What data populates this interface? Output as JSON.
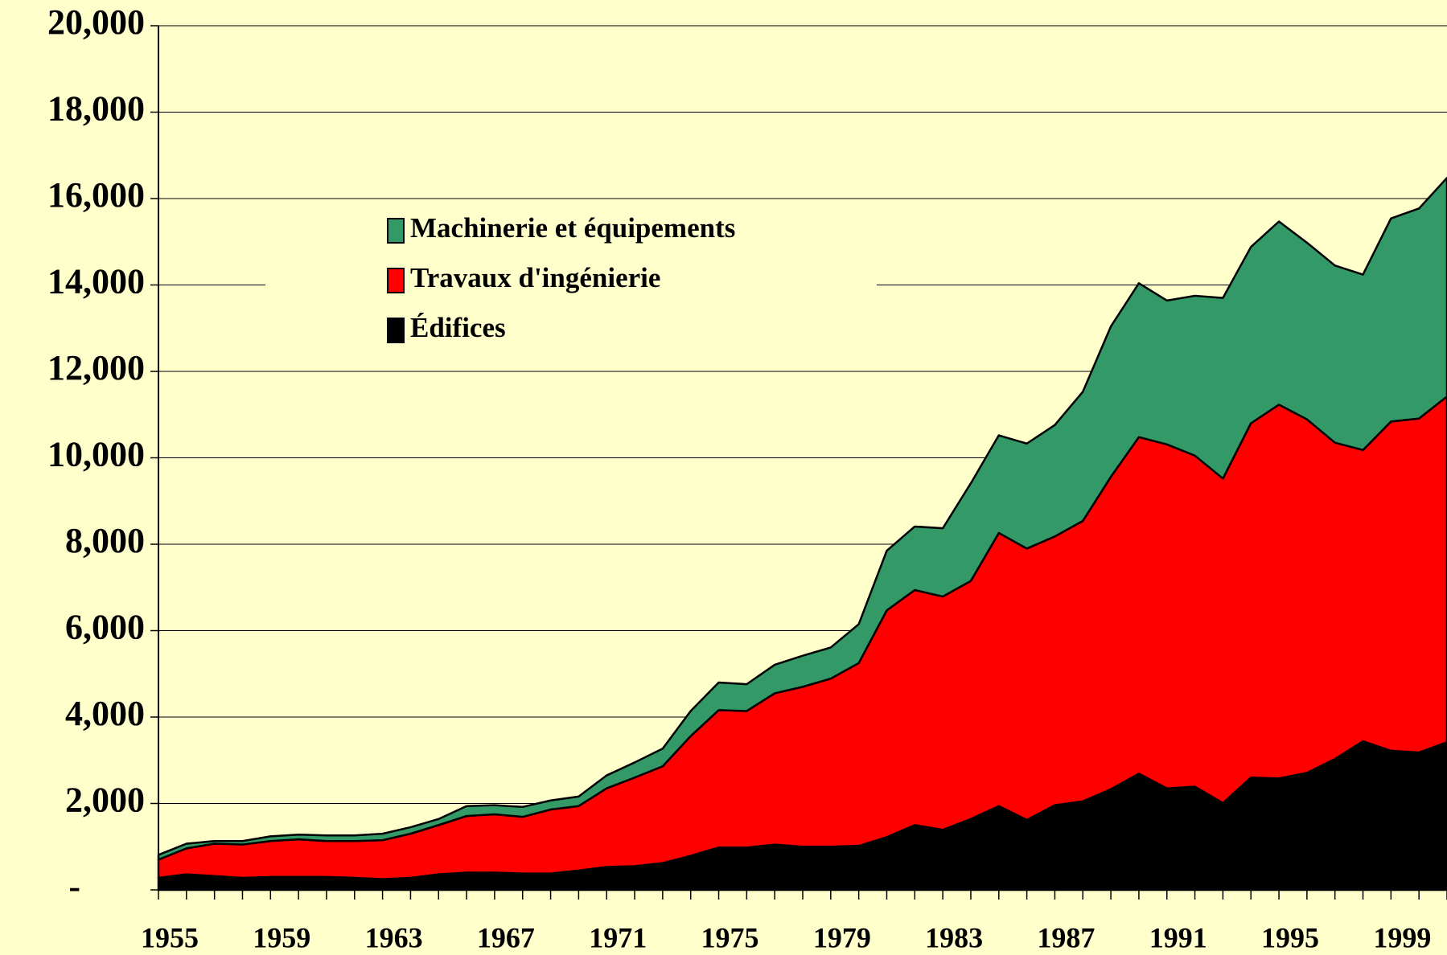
{
  "chart_data": {
    "type": "stacked_area",
    "categories": [
      "1955",
      null,
      null,
      null,
      "1959",
      null,
      null,
      null,
      "1963",
      null,
      null,
      null,
      "1967",
      null,
      null,
      null,
      "1971",
      null,
      null,
      null,
      "1975",
      null,
      null,
      null,
      "1979",
      null,
      null,
      null,
      "1983",
      null,
      null,
      null,
      "1987",
      null,
      null,
      null,
      "1991",
      null,
      null,
      null,
      "1995",
      null,
      null,
      null,
      "1999",
      null,
      null
    ],
    "series": [
      {
        "name": "Édifices",
        "color": "#000000",
        "values": [
          280,
          360,
          320,
          280,
          300,
          300,
          300,
          280,
          250,
          280,
          360,
          400,
          400,
          380,
          380,
          450,
          530,
          550,
          620,
          790,
          980,
          980,
          1050,
          1000,
          1000,
          1020,
          1220,
          1500,
          1390,
          1640,
          1940,
          1620,
          1960,
          2050,
          2330,
          2690,
          2350,
          2390,
          2010,
          2600,
          2580,
          2710,
          3030,
          3440,
          3220,
          3180,
          3420
        ]
      },
      {
        "name": "Travaux d'ingénierie",
        "color": "#ff0000",
        "values": [
          420,
          600,
          750,
          770,
          830,
          870,
          830,
          850,
          900,
          1020,
          1140,
          1310,
          1350,
          1310,
          1480,
          1490,
          1820,
          2050,
          2240,
          2770,
          3180,
          3160,
          3500,
          3700,
          3890,
          4230,
          5250,
          5440,
          5400,
          5510,
          6320,
          6280,
          6220,
          6490,
          7230,
          7790,
          7960,
          7660,
          7510,
          8200,
          8650,
          8180,
          7320,
          6740,
          7620,
          7730,
          8000
        ]
      },
      {
        "name": "Machinerie et équipements",
        "color": "#339966",
        "values": [
          110,
          110,
          60,
          80,
          110,
          110,
          130,
          130,
          150,
          150,
          140,
          230,
          210,
          230,
          210,
          220,
          300,
          350,
          410,
          580,
          640,
          620,
          660,
          720,
          720,
          900,
          1380,
          1470,
          1580,
          2260,
          2260,
          2430,
          2580,
          2990,
          3480,
          3560,
          3330,
          3700,
          4180,
          4080,
          4240,
          4090,
          4100,
          4060,
          4700,
          4860,
          5060
        ]
      }
    ],
    "ylim": [
      0,
      20000
    ],
    "yticks": [
      {
        "value": 0,
        "label": "-"
      },
      {
        "value": 2000,
        "label": "2,000"
      },
      {
        "value": 4000,
        "label": "4,000"
      },
      {
        "value": 6000,
        "label": "6,000"
      },
      {
        "value": 8000,
        "label": "8,000"
      },
      {
        "value": 10000,
        "label": "10,000"
      },
      {
        "value": 12000,
        "label": "12,000"
      },
      {
        "value": 14000,
        "label": "14,000"
      },
      {
        "value": 16000,
        "label": "16,000"
      },
      {
        "value": 18000,
        "label": "18,000"
      },
      {
        "value": 20000,
        "label": "20,000"
      }
    ],
    "grid": true,
    "legend": "upper-left"
  }
}
